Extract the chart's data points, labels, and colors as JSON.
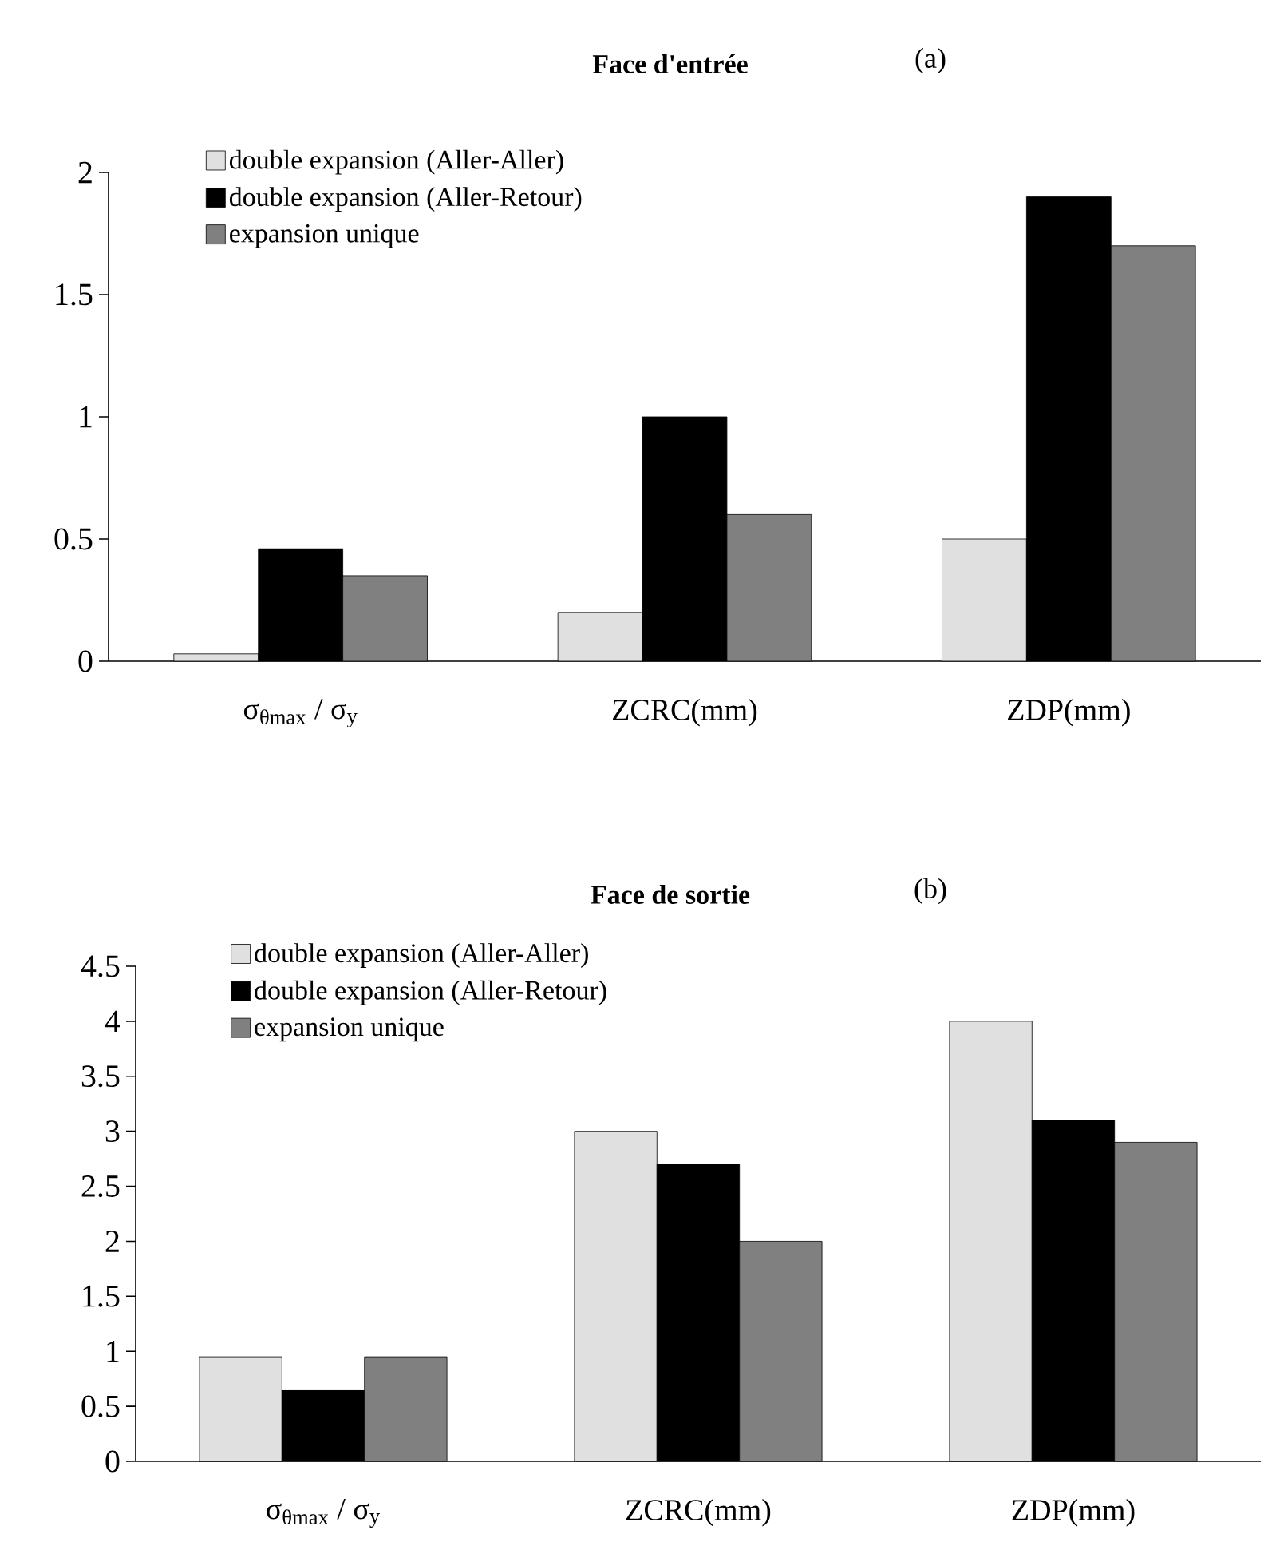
{
  "chart_data": [
    {
      "type": "bar",
      "title": "Face d'entrée",
      "subtitle": "(a)",
      "categories": [
        "σ$_{θmax}$ / σ$_{y}$",
        "ZCRC(mm)",
        "ZDP(mm)"
      ],
      "series": [
        {
          "name": "double expansion (Aller-Aller)",
          "color": "#e0e0e0",
          "values": [
            0.03,
            0.2,
            0.5
          ]
        },
        {
          "name": "double expansion (Aller-Retour)",
          "color": "#000000",
          "values": [
            0.46,
            1.0,
            1.9
          ]
        },
        {
          "name": "expansion unique",
          "color": "#808080",
          "values": [
            0.35,
            0.6,
            1.7
          ]
        }
      ],
      "ylim": [
        0,
        2
      ],
      "yticks": [
        0,
        0.5,
        1,
        1.5,
        2
      ],
      "legend": "top left"
    },
    {
      "type": "bar",
      "title": "Face de sortie",
      "subtitle": "(b)",
      "categories": [
        "σ$_{θmax}$ / σ$_{y}$",
        "ZCRC(mm)",
        "ZDP(mm)"
      ],
      "series": [
        {
          "name": "double expansion (Aller-Aller)",
          "color": "#e0e0e0",
          "values": [
            0.95,
            3.0,
            4.0
          ]
        },
        {
          "name": "double expansion (Aller-Retour)",
          "color": "#000000",
          "values": [
            0.65,
            2.7,
            3.1
          ]
        },
        {
          "name": "expansion unique",
          "color": "#808080",
          "values": [
            0.95,
            2.0,
            2.9
          ]
        }
      ],
      "ylim": [
        0,
        4.5
      ],
      "yticks": [
        0,
        0.5,
        1,
        1.5,
        2,
        2.5,
        3,
        3.5,
        4,
        4.5
      ],
      "legend": "top left"
    }
  ]
}
